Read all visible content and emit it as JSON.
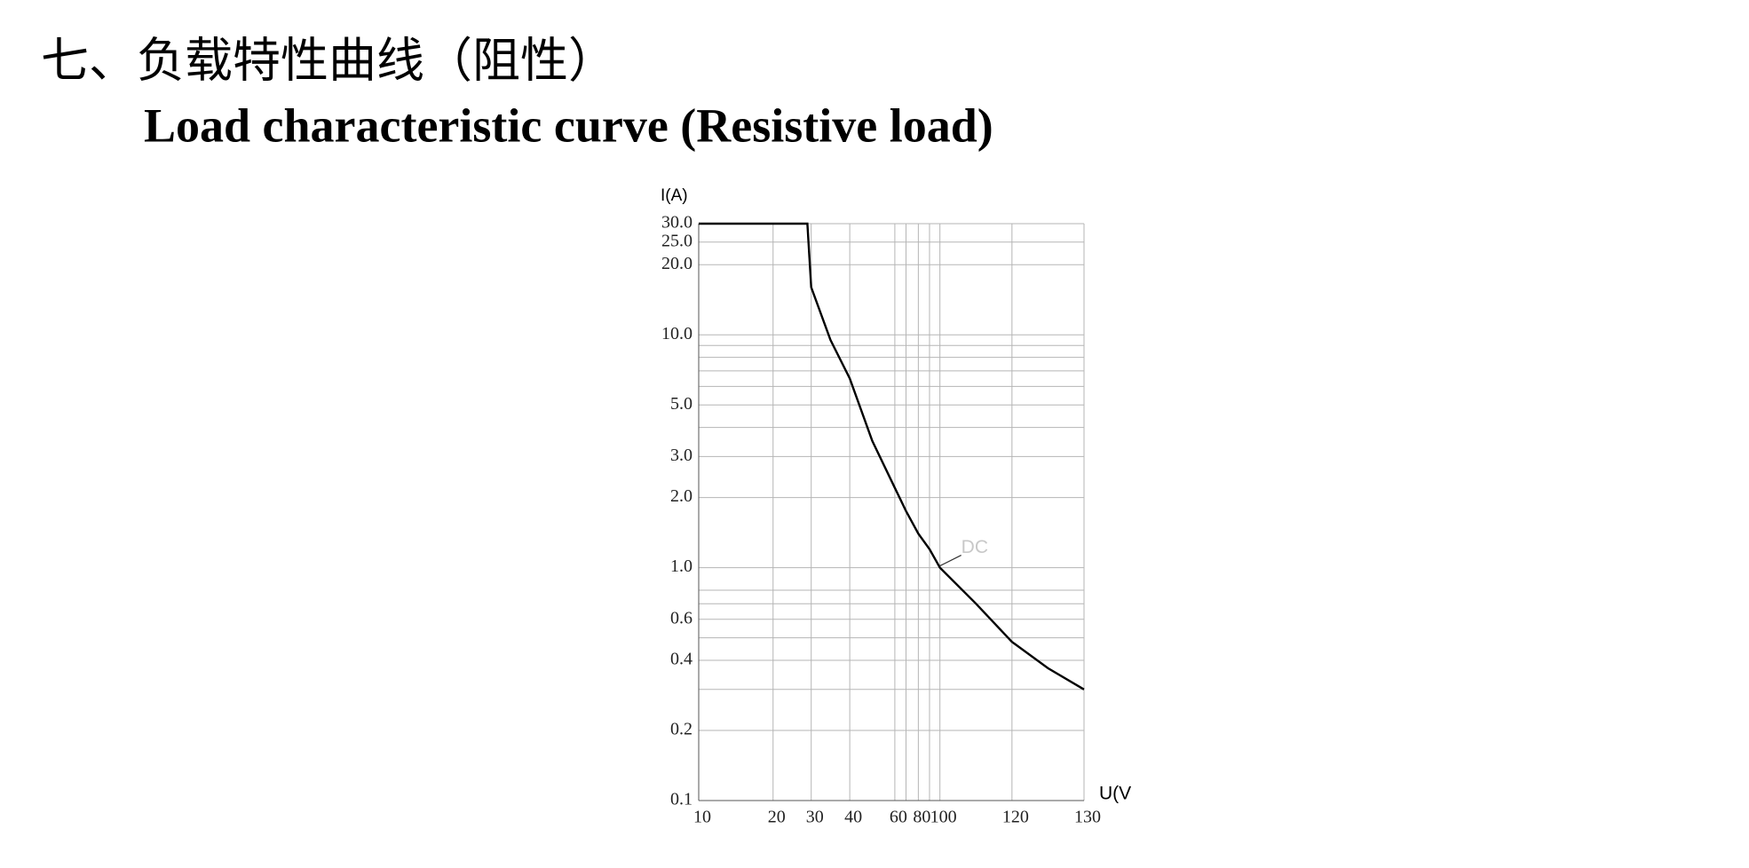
{
  "header": {
    "title_cn": "七、负载特性曲线（阻性）",
    "title_en": "Load characteristic curve (Resistive load)"
  },
  "chart_data": {
    "type": "line",
    "y_label": "I(A)",
    "x_label": "U(V",
    "y_scale": "log",
    "grid": true,
    "x": [
      10,
      29,
      30,
      35,
      40,
      50,
      60,
      70,
      80,
      90,
      100,
      110,
      120,
      125,
      130
    ],
    "series": [
      {
        "name": "DC",
        "color": "#000000",
        "values": [
          30,
          30,
          16,
          9.5,
          6.5,
          3.5,
          2.2,
          1.75,
          1.4,
          1.2,
          1.0,
          0.7,
          0.48,
          0.37,
          0.3
        ]
      }
    ],
    "xlim": [
      10,
      130
    ],
    "xticks": [
      10,
      20,
      30,
      40,
      60,
      80,
      100,
      120,
      130
    ],
    "xminor": [
      70,
      90
    ],
    "ylim": [
      0.1,
      30
    ],
    "yticks": [
      {
        "value": 0.1,
        "label": "0.1"
      },
      {
        "value": 0.2,
        "label": "0.2"
      },
      {
        "value": 0.4,
        "label": "0.4"
      },
      {
        "value": 0.6,
        "label": "0.6"
      },
      {
        "value": 1,
        "label": "1.0"
      },
      {
        "value": 2,
        "label": "2.0"
      },
      {
        "value": 3,
        "label": "3.0"
      },
      {
        "value": 5,
        "label": "5.0"
      },
      {
        "value": 10,
        "label": "10.0"
      },
      {
        "value": 20,
        "label": "20.0"
      },
      {
        "value": 25,
        "label": "25.0"
      },
      {
        "value": 30,
        "label": "30.0"
      }
    ],
    "yminor": [
      0.3,
      0.5,
      0.7,
      0.8,
      4,
      6,
      7,
      8,
      9
    ]
  }
}
